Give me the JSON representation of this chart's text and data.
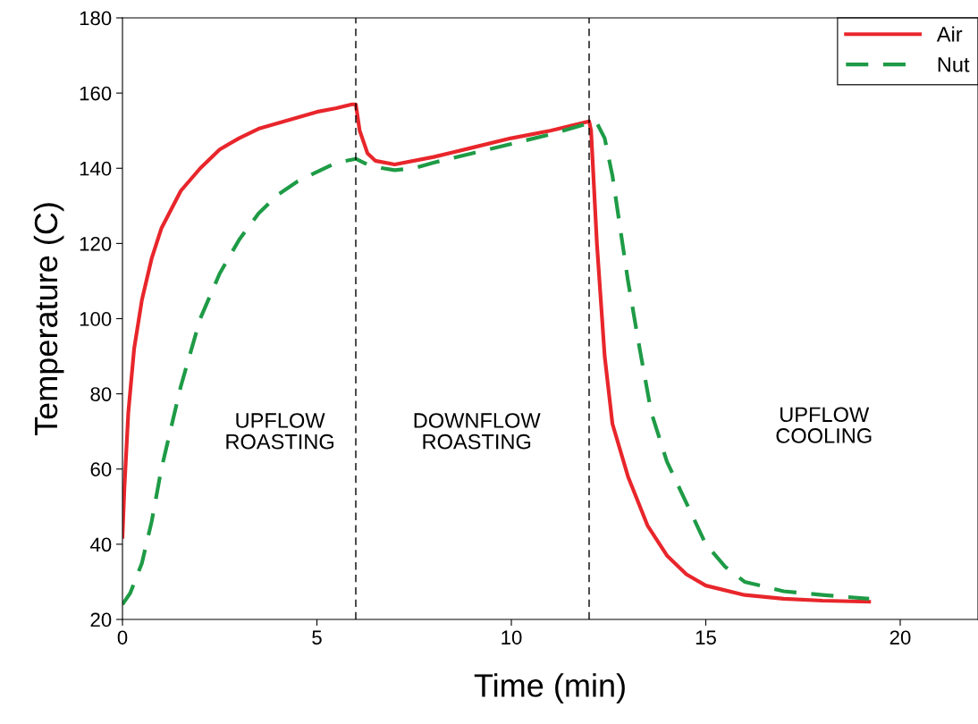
{
  "chart_data": {
    "type": "line",
    "xlabel": "Time (min)",
    "ylabel": "Temperature (C)",
    "xlim": [
      0,
      22
    ],
    "xticks": [
      0,
      5,
      10,
      15,
      20
    ],
    "ylim": [
      20,
      180
    ],
    "yticks": [
      20,
      40,
      60,
      80,
      100,
      120,
      140,
      160,
      180
    ],
    "grid": false,
    "legend": "top right",
    "marker": "none",
    "ref_lines": [
      {
        "axis": "x",
        "value": 6,
        "label": null,
        "color": "#000000",
        "line_style": "dashed"
      },
      {
        "axis": "x",
        "value": 12,
        "label": null,
        "color": "#000000",
        "line_style": "dashed"
      }
    ],
    "annotations": [
      "UPFLOW\nROASTING",
      "DOWNFLOW\nROASTING",
      "UPFLOW\nCOOLING"
    ],
    "series": [
      {
        "name": "Air",
        "color": "#e8262b",
        "line_style": "solid",
        "x": [
          0,
          0.05,
          0.15,
          0.3,
          0.5,
          0.75,
          1,
          1.5,
          2,
          2.5,
          3,
          3.5,
          4,
          4.5,
          5,
          5.5,
          5.9,
          6.0,
          6.1,
          6.3,
          6.5,
          7,
          8,
          9,
          10,
          11,
          12,
          12.05,
          12.2,
          12.4,
          12.6,
          13,
          13.5,
          14,
          14.5,
          15,
          16,
          17,
          18,
          19.2
        ],
        "values": [
          42,
          55,
          75,
          92,
          105,
          116,
          124,
          134,
          140,
          145,
          148,
          150.5,
          152,
          153.5,
          155,
          156,
          157,
          157,
          150,
          144,
          142,
          141,
          143,
          145.5,
          148,
          150,
          152.5,
          150,
          120,
          90,
          72,
          58,
          45,
          37,
          32,
          29,
          26.5,
          25.5,
          25,
          24.7
        ]
      },
      {
        "name": "Nut",
        "color": "#1e9b46",
        "line_style": "dashed",
        "x": [
          0,
          0.2,
          0.5,
          0.75,
          1,
          1.5,
          2,
          2.5,
          3,
          3.5,
          4,
          4.5,
          5,
          5.5,
          6,
          6.3,
          6.7,
          7,
          7.5,
          8,
          9,
          10,
          11,
          12,
          12.2,
          12.4,
          12.6,
          12.8,
          13,
          13.3,
          13.6,
          14,
          14.5,
          15,
          15.5,
          16,
          17,
          18,
          19.2
        ],
        "values": [
          24,
          27,
          35,
          46,
          60,
          82,
          100,
          112,
          121,
          128,
          133,
          136.5,
          139,
          141.5,
          142.5,
          141,
          140,
          139.5,
          140,
          141.5,
          144,
          146.5,
          149,
          152,
          152,
          148,
          138,
          124,
          110,
          92,
          75,
          62,
          51,
          40,
          34,
          30,
          27.5,
          26.5,
          25.5
        ]
      }
    ]
  }
}
